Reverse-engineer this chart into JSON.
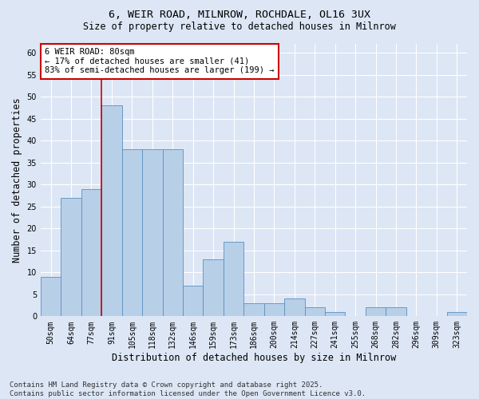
{
  "title_line1": "6, WEIR ROAD, MILNROW, ROCHDALE, OL16 3UX",
  "title_line2": "Size of property relative to detached houses in Milnrow",
  "xlabel": "Distribution of detached houses by size in Milnrow",
  "ylabel": "Number of detached properties",
  "categories": [
    "50sqm",
    "64sqm",
    "77sqm",
    "91sqm",
    "105sqm",
    "118sqm",
    "132sqm",
    "146sqm",
    "159sqm",
    "173sqm",
    "186sqm",
    "200sqm",
    "214sqm",
    "227sqm",
    "241sqm",
    "255sqm",
    "268sqm",
    "282sqm",
    "296sqm",
    "309sqm",
    "323sqm"
  ],
  "values": [
    9,
    27,
    29,
    48,
    38,
    38,
    38,
    7,
    13,
    17,
    3,
    3,
    4,
    2,
    1,
    0,
    2,
    2,
    0,
    0,
    1
  ],
  "bar_color": "#b8cfe8",
  "bar_edge_color": "#5a8fc0",
  "background_color": "#dce6f5",
  "grid_color": "#ffffff",
  "vline_x": 2.5,
  "vline_color": "#cc0000",
  "annotation_text": "6 WEIR ROAD: 80sqm\n← 17% of detached houses are smaller (41)\n83% of semi-detached houses are larger (199) →",
  "annotation_box_color": "#ffffff",
  "annotation_box_edge": "#cc0000",
  "ylim": [
    0,
    62
  ],
  "yticks": [
    0,
    5,
    10,
    15,
    20,
    25,
    30,
    35,
    40,
    45,
    50,
    55,
    60
  ],
  "footer_text": "Contains HM Land Registry data © Crown copyright and database right 2025.\nContains public sector information licensed under the Open Government Licence v3.0.",
  "title_fontsize": 9.5,
  "subtitle_fontsize": 8.5,
  "axis_label_fontsize": 8.5,
  "tick_fontsize": 7,
  "annotation_fontsize": 7.5,
  "footer_fontsize": 6.5
}
